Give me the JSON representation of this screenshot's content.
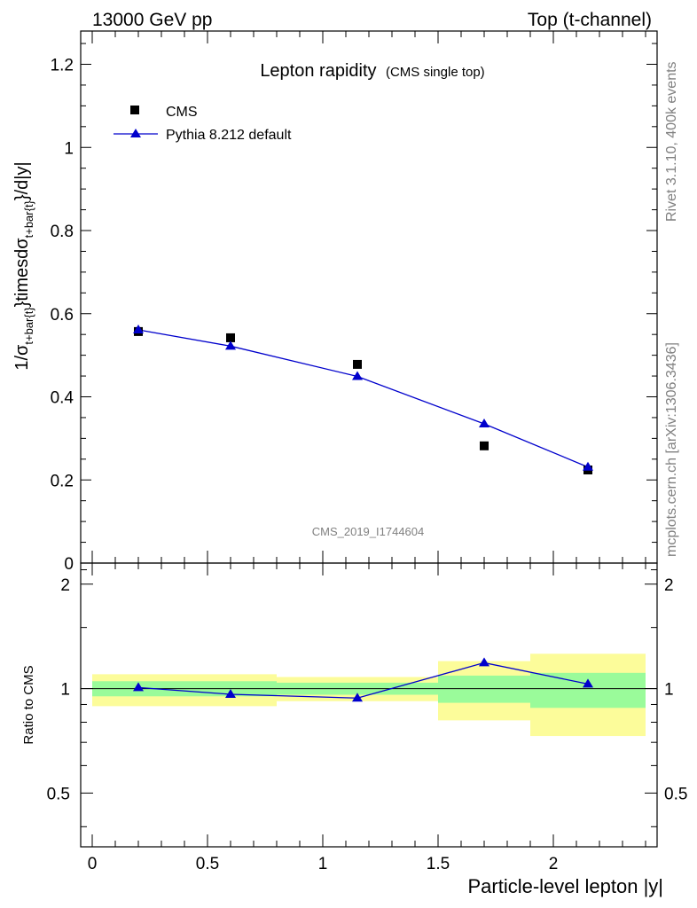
{
  "header": {
    "left": "13000 GeV pp",
    "right": "Top (t-channel)"
  },
  "side_labels": {
    "rivet": "Rivet 3.1.10,  400k events",
    "mcplots": "mcplots.cern.ch [arXiv:1306.3436]"
  },
  "chart_data": [
    {
      "type": "scatter",
      "title": "Lepton rapidity",
      "subtitle": "(CMS single top)",
      "watermark": "CMS_2019_I1744604",
      "xlabel": "Particle-level lepton |y|",
      "ylabel": "1/σ_{t+bar{t}}timesdσ_{t+bar{t}}/d|y|",
      "ylabel_parts": {
        "a": "1/σ",
        "sub1": "t+bar{t}",
        "b": "}timesdσ",
        "sub2": "t+bar{t}",
        "c": "}/d|y|"
      },
      "xlim": [
        -0.05,
        2.45
      ],
      "ylim": [
        0,
        1.28
      ],
      "yticks": [
        0,
        0.2,
        0.4,
        0.6,
        0.8,
        1,
        1.2
      ],
      "ytick_labels": [
        "0",
        "0.2",
        "0.4",
        "0.6",
        "0.8",
        "1",
        "1.2"
      ],
      "legend": [
        {
          "label": "CMS",
          "marker": "square",
          "color": "#000000"
        },
        {
          "label": "Pythia 8.212 default",
          "marker": "triangle",
          "color": "#0000cc"
        }
      ],
      "series": [
        {
          "name": "CMS",
          "x": [
            0.2,
            0.6,
            1.15,
            1.7,
            2.15
          ],
          "y": [
            0.557,
            0.542,
            0.478,
            0.282,
            0.224
          ]
        },
        {
          "name": "Pythia 8.212 default",
          "x": [
            0.2,
            0.6,
            1.15,
            1.7,
            2.15
          ],
          "y": [
            0.561,
            0.522,
            0.449,
            0.335,
            0.231
          ]
        }
      ]
    },
    {
      "type": "line",
      "ylabel": "Ratio to CMS",
      "xlim": [
        -0.05,
        2.45
      ],
      "ylim": [
        0.35,
        2.3
      ],
      "yticks": [
        0.5,
        1,
        2
      ],
      "ytick_labels": [
        "0.5",
        "1",
        "2"
      ],
      "xticks": [
        0,
        0.5,
        1,
        1.5,
        2
      ],
      "xtick_labels": [
        "0",
        "0.5",
        "1",
        "1.5",
        "2"
      ],
      "bands": [
        {
          "x0": 0.0,
          "x1": 0.4,
          "inner": [
            0.95,
            1.05
          ],
          "outer": [
            0.89,
            1.1
          ]
        },
        {
          "x0": 0.4,
          "x1": 0.8,
          "inner": [
            0.95,
            1.05
          ],
          "outer": [
            0.89,
            1.1
          ]
        },
        {
          "x0": 0.8,
          "x1": 1.5,
          "inner": [
            0.96,
            1.04
          ],
          "outer": [
            0.92,
            1.08
          ]
        },
        {
          "x0": 1.5,
          "x1": 1.9,
          "inner": [
            0.91,
            1.09
          ],
          "outer": [
            0.81,
            1.2
          ]
        },
        {
          "x0": 1.9,
          "x1": 2.4,
          "inner": [
            0.88,
            1.11
          ],
          "outer": [
            0.73,
            1.26
          ]
        }
      ],
      "series": [
        {
          "name": "Pythia 8.212 default",
          "x": [
            0.2,
            0.6,
            1.15,
            1.7,
            2.15
          ],
          "y": [
            1.007,
            0.963,
            0.939,
            1.187,
            1.031
          ]
        }
      ]
    }
  ],
  "colors": {
    "mc": "#0000cc",
    "data": "#000000",
    "band_inner": "#9afb9a",
    "band_outer": "#fcfc9a",
    "annotation": "#808080"
  }
}
